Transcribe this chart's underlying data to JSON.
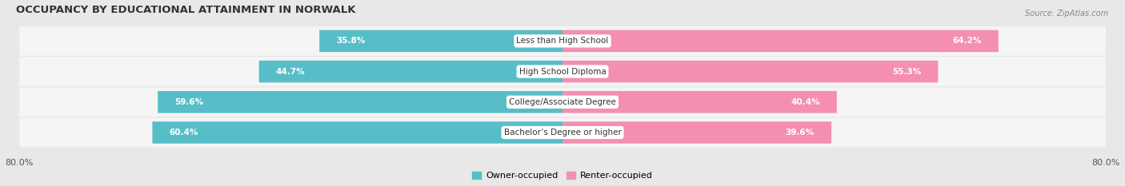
{
  "title": "OCCUPANCY BY EDUCATIONAL ATTAINMENT IN NORWALK",
  "source": "Source: ZipAtlas.com",
  "categories": [
    "Less than High School",
    "High School Diploma",
    "College/Associate Degree",
    "Bachelor’s Degree or higher"
  ],
  "owner_pct": [
    35.8,
    44.7,
    59.6,
    60.4
  ],
  "renter_pct": [
    64.2,
    55.3,
    40.4,
    39.6
  ],
  "owner_color": "#57bec8",
  "renter_color": "#f48fb1",
  "background_color": "#e8e8e8",
  "bar_background": "#f5f5f5",
  "axis_limit": 80.0,
  "bar_height": 0.72,
  "title_fontsize": 9.5,
  "source_fontsize": 7,
  "label_fontsize": 7.5,
  "tick_fontsize": 8,
  "legend_fontsize": 8,
  "row_gap_color": "#d8d8d8"
}
